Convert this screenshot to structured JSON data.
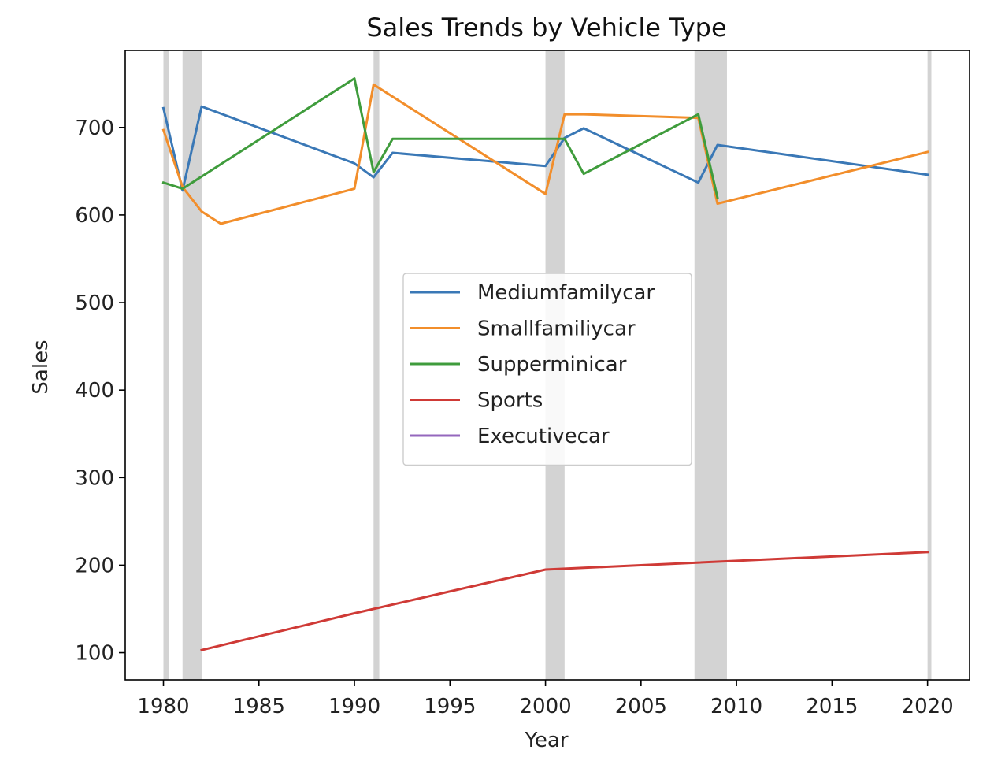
{
  "chart_data": {
    "type": "line",
    "title": "Sales Trends by Vehicle Type",
    "xlabel": "Year",
    "ylabel": "Sales",
    "xlim": [
      1978,
      2022.2
    ],
    "ylim": [
      69,
      788
    ],
    "xticks": [
      1980,
      1985,
      1990,
      1995,
      2000,
      2005,
      2010,
      2015,
      2020
    ],
    "yticks": [
      100,
      200,
      300,
      400,
      500,
      600,
      700
    ],
    "grid": false,
    "legend_position": "center",
    "recession_bands": [
      [
        1980.0,
        1980.3
      ],
      [
        1981.0,
        1982.0
      ],
      [
        1991.0,
        1991.3
      ],
      [
        2000.0,
        2001.0
      ],
      [
        2007.8,
        2009.5
      ],
      [
        2020.0,
        2020.2
      ]
    ],
    "recession_color": "#d3d3d3",
    "series": [
      {
        "name": "Mediumfamilycar",
        "color": "#3a78b6",
        "points": [
          [
            1980,
            722
          ],
          [
            1981,
            628
          ],
          [
            1982,
            724
          ],
          [
            1990,
            659
          ],
          [
            1991,
            643
          ],
          [
            1992,
            671
          ],
          [
            2000,
            656
          ],
          [
            2001,
            688
          ],
          [
            2002,
            699
          ],
          [
            2008,
            637
          ],
          [
            2009,
            680
          ],
          [
            2020,
            646
          ]
        ]
      },
      {
        "name": "Smallfamiliycar",
        "color": "#f28e2b",
        "points": [
          [
            1980,
            697
          ],
          [
            1981,
            632
          ],
          [
            1982,
            604
          ],
          [
            1983,
            590
          ],
          [
            1990,
            630
          ],
          [
            1991,
            749
          ],
          [
            2000,
            624
          ],
          [
            2001,
            715
          ],
          [
            2002,
            715
          ],
          [
            2008,
            711
          ],
          [
            2009,
            613
          ],
          [
            2020,
            672
          ]
        ]
      },
      {
        "name": "Supperminicar",
        "color": "#3f9c3c",
        "points": [
          [
            1980,
            637
          ],
          [
            1981,
            630
          ],
          [
            1990,
            756
          ],
          [
            1991,
            649
          ],
          [
            1992,
            687
          ],
          [
            2000,
            687
          ],
          [
            2001,
            687
          ],
          [
            2002,
            647
          ],
          [
            2008,
            715
          ],
          [
            2009,
            620
          ]
        ]
      },
      {
        "name": "Sports",
        "color": "#cf3a36",
        "points": [
          [
            1982,
            103
          ],
          [
            1990,
            145
          ],
          [
            2000,
            195
          ],
          [
            2020,
            215
          ]
        ]
      },
      {
        "name": "Executivecar",
        "color": "#9467bd",
        "points": []
      }
    ]
  }
}
